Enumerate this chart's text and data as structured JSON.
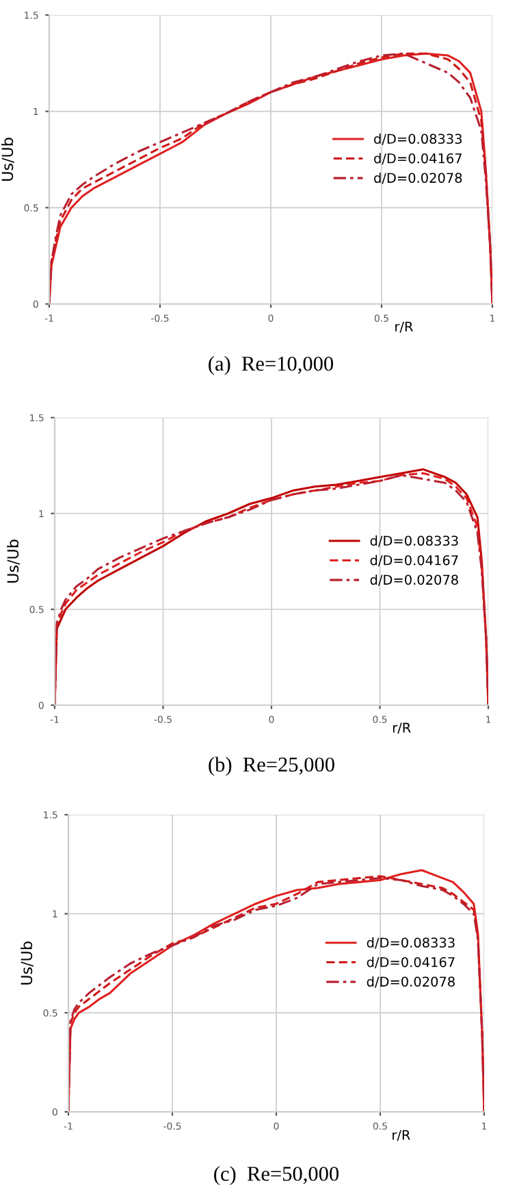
{
  "chart_data": [
    {
      "type": "line",
      "title": "(a)  Re=10,000",
      "xlabel": "r/R",
      "ylabel": "Us/Ub",
      "xlim": [
        -1,
        1
      ],
      "ylim": [
        0,
        1.5
      ],
      "xticks": [
        -1,
        -0.5,
        0,
        0.5,
        1
      ],
      "yticks": [
        0,
        0.5,
        1,
        1.5
      ],
      "grid": true,
      "legend": "right",
      "x": [
        -1,
        -0.99,
        -0.97,
        -0.95,
        -0.9,
        -0.85,
        -0.8,
        -0.7,
        -0.6,
        -0.5,
        -0.4,
        -0.3,
        -0.2,
        -0.1,
        0,
        0.1,
        0.2,
        0.3,
        0.4,
        0.5,
        0.6,
        0.7,
        0.8,
        0.85,
        0.9,
        0.95,
        0.97,
        0.99,
        1
      ],
      "series": [
        {
          "name": "d/D=0.08333",
          "color": "#e02020",
          "line_style": "solid",
          "values": [
            0,
            0.2,
            0.3,
            0.4,
            0.5,
            0.56,
            0.6,
            0.66,
            0.72,
            0.78,
            0.84,
            0.93,
            0.99,
            1.04,
            1.1,
            1.14,
            1.18,
            1.21,
            1.24,
            1.27,
            1.29,
            1.3,
            1.29,
            1.26,
            1.2,
            1.0,
            0.7,
            0.3,
            0
          ]
        },
        {
          "name": "d/D=0.04167",
          "color": "#d01818",
          "line_style": "dashed",
          "values": [
            0,
            0.22,
            0.33,
            0.43,
            0.54,
            0.6,
            0.63,
            0.69,
            0.75,
            0.81,
            0.86,
            0.94,
            0.99,
            1.05,
            1.1,
            1.14,
            1.17,
            1.21,
            1.25,
            1.28,
            1.3,
            1.3,
            1.27,
            1.22,
            1.15,
            0.95,
            0.7,
            0.3,
            0
          ]
        },
        {
          "name": "d/D=0.02078",
          "color": "#b82030",
          "line_style": "dashdot",
          "values": [
            0,
            0.22,
            0.35,
            0.46,
            0.57,
            0.62,
            0.66,
            0.73,
            0.79,
            0.84,
            0.89,
            0.94,
            0.99,
            1.05,
            1.1,
            1.15,
            1.18,
            1.22,
            1.26,
            1.29,
            1.3,
            1.25,
            1.2,
            1.15,
            1.07,
            0.9,
            0.65,
            0.3,
            0
          ]
        }
      ]
    },
    {
      "type": "line",
      "title": "(b)  Re=25,000",
      "xlabel": "r/R",
      "ylabel": "Us/Ub",
      "xlim": [
        -1,
        1
      ],
      "ylim": [
        0,
        1.5
      ],
      "xticks": [
        -1,
        -0.5,
        0,
        0.5,
        1
      ],
      "yticks": [
        0,
        0.5,
        1,
        1.5
      ],
      "grid": true,
      "legend": "right",
      "x": [
        -1,
        -0.99,
        -0.97,
        -0.95,
        -0.9,
        -0.85,
        -0.8,
        -0.7,
        -0.6,
        -0.5,
        -0.4,
        -0.3,
        -0.2,
        -0.1,
        0,
        0.1,
        0.2,
        0.3,
        0.4,
        0.5,
        0.6,
        0.7,
        0.8,
        0.85,
        0.9,
        0.95,
        0.97,
        0.99,
        1
      ],
      "series": [
        {
          "name": "d/D=0.08333",
          "color": "#c00000",
          "line_style": "solid",
          "values": [
            0,
            0.4,
            0.45,
            0.5,
            0.56,
            0.61,
            0.65,
            0.71,
            0.77,
            0.83,
            0.9,
            0.96,
            1.0,
            1.05,
            1.08,
            1.12,
            1.14,
            1.15,
            1.17,
            1.19,
            1.21,
            1.23,
            1.19,
            1.16,
            1.1,
            0.98,
            0.75,
            0.35,
            0
          ]
        },
        {
          "name": "d/D=0.04167",
          "color": "#e02020",
          "line_style": "dashed",
          "values": [
            0,
            0.42,
            0.48,
            0.53,
            0.6,
            0.64,
            0.68,
            0.74,
            0.8,
            0.85,
            0.91,
            0.95,
            0.98,
            1.03,
            1.07,
            1.1,
            1.12,
            1.14,
            1.16,
            1.17,
            1.2,
            1.21,
            1.18,
            1.14,
            1.08,
            0.93,
            0.72,
            0.35,
            0
          ]
        },
        {
          "name": "d/D=0.02078",
          "color": "#b82030",
          "line_style": "dashdot",
          "values": [
            0,
            0.43,
            0.5,
            0.55,
            0.62,
            0.66,
            0.71,
            0.77,
            0.82,
            0.87,
            0.91,
            0.95,
            0.98,
            1.02,
            1.07,
            1.1,
            1.12,
            1.13,
            1.15,
            1.17,
            1.2,
            1.18,
            1.16,
            1.12,
            1.06,
            0.9,
            0.7,
            0.35,
            0
          ]
        }
      ]
    },
    {
      "type": "line",
      "title": "(c)  Re=50,000",
      "xlabel": "r/R",
      "ylabel": "Us/Ub",
      "xlim": [
        -1,
        1
      ],
      "ylim": [
        0,
        1.5
      ],
      "xticks": [
        -1,
        -0.5,
        0,
        0.5,
        1
      ],
      "yticks": [
        0,
        0.5,
        1,
        1.5
      ],
      "grid": true,
      "legend": "right",
      "x": [
        -1,
        -0.99,
        -0.97,
        -0.95,
        -0.9,
        -0.85,
        -0.8,
        -0.7,
        -0.6,
        -0.5,
        -0.4,
        -0.3,
        -0.2,
        -0.1,
        0,
        0.1,
        0.2,
        0.3,
        0.4,
        0.5,
        0.6,
        0.7,
        0.8,
        0.85,
        0.9,
        0.95,
        0.97,
        0.99,
        1
      ],
      "series": [
        {
          "name": "d/D=0.08333",
          "color": "#e02020",
          "line_style": "solid",
          "values": [
            0,
            0.42,
            0.47,
            0.5,
            0.53,
            0.57,
            0.6,
            0.7,
            0.77,
            0.84,
            0.89,
            0.95,
            1.0,
            1.05,
            1.09,
            1.12,
            1.13,
            1.15,
            1.16,
            1.17,
            1.2,
            1.22,
            1.18,
            1.16,
            1.11,
            1.05,
            0.9,
            0.4,
            0
          ]
        },
        {
          "name": "d/D=0.04167",
          "color": "#d01818",
          "line_style": "dashed",
          "values": [
            0,
            0.45,
            0.5,
            0.53,
            0.57,
            0.61,
            0.65,
            0.72,
            0.79,
            0.85,
            0.88,
            0.93,
            0.98,
            1.03,
            1.05,
            1.1,
            1.16,
            1.17,
            1.18,
            1.19,
            1.17,
            1.15,
            1.13,
            1.1,
            1.06,
            1.02,
            0.88,
            0.4,
            0
          ]
        },
        {
          "name": "d/D=0.02078",
          "color": "#b82030",
          "line_style": "dashdot",
          "values": [
            0,
            0.46,
            0.52,
            0.55,
            0.6,
            0.64,
            0.68,
            0.75,
            0.8,
            0.84,
            0.88,
            0.94,
            0.97,
            1.02,
            1.04,
            1.08,
            1.15,
            1.16,
            1.17,
            1.18,
            1.17,
            1.14,
            1.12,
            1.09,
            1.05,
            1.0,
            0.87,
            0.4,
            0
          ]
        }
      ]
    }
  ]
}
